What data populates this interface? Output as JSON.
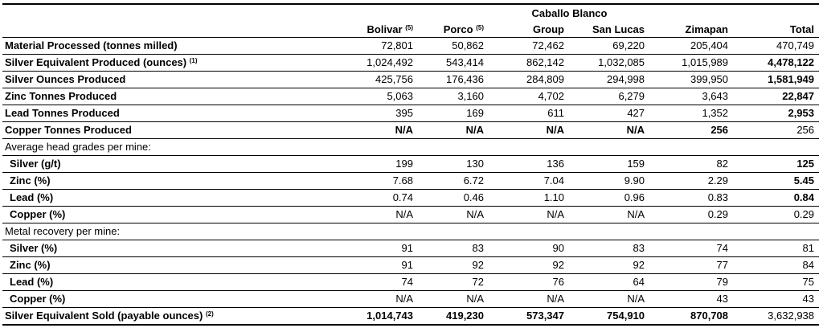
{
  "header": {
    "group_label": "Caballo Blanco",
    "columns": [
      {
        "label": "Bolivar",
        "sup": "(5)"
      },
      {
        "label": "Porco",
        "sup": "(5)"
      },
      {
        "label": "Group",
        "sup": ""
      },
      {
        "label": "San Lucas",
        "sup": ""
      },
      {
        "label": "Zimapan",
        "sup": ""
      },
      {
        "label": "Total",
        "sup": ""
      }
    ]
  },
  "rows": [
    {
      "label": "Material Processed (tonnes milled)",
      "sup": "",
      "style": "bold",
      "values": [
        "72,801",
        "50,862",
        "72,462",
        "69,220",
        "205,404",
        "470,749"
      ],
      "bold_cells": [
        false,
        false,
        false,
        false,
        false,
        false
      ]
    },
    {
      "label": "Silver Equivalent Produced (ounces)",
      "sup": "(1)",
      "style": "bold",
      "values": [
        "1,024,492",
        "543,414",
        "862,142",
        "1,032,085",
        "1,015,989",
        "4,478,122"
      ],
      "bold_cells": [
        false,
        false,
        false,
        false,
        false,
        true
      ]
    },
    {
      "label": "Silver Ounces Produced",
      "sup": "",
      "style": "bold",
      "values": [
        "425,756",
        "176,436",
        "284,809",
        "294,998",
        "399,950",
        "1,581,949"
      ],
      "bold_cells": [
        false,
        false,
        false,
        false,
        false,
        true
      ]
    },
    {
      "label": "Zinc Tonnes Produced",
      "sup": "",
      "style": "bold",
      "values": [
        "5,063",
        "3,160",
        "4,702",
        "6,279",
        "3,643",
        "22,847"
      ],
      "bold_cells": [
        false,
        false,
        false,
        false,
        false,
        true
      ]
    },
    {
      "label": "Lead Tonnes Produced",
      "sup": "",
      "style": "bold",
      "values": [
        "395",
        "169",
        "611",
        "427",
        "1,352",
        "2,953"
      ],
      "bold_cells": [
        false,
        false,
        false,
        false,
        false,
        true
      ]
    },
    {
      "label": "Copper Tonnes Produced",
      "sup": "",
      "style": "bold",
      "values": [
        "N/A",
        "N/A",
        "N/A",
        "N/A",
        "256",
        "256"
      ],
      "bold_cells": [
        true,
        true,
        true,
        true,
        true,
        false
      ]
    },
    {
      "label": "Average head grades per mine:",
      "sup": "",
      "style": "sect",
      "values": [
        "",
        "",
        "",
        "",
        "",
        ""
      ],
      "bold_cells": [
        false,
        false,
        false,
        false,
        false,
        false
      ]
    },
    {
      "label": "Silver (g/t)",
      "sup": "",
      "style": "sub",
      "values": [
        "199",
        "130",
        "136",
        "159",
        "82",
        "125"
      ],
      "bold_cells": [
        false,
        false,
        false,
        false,
        false,
        true
      ]
    },
    {
      "label": "Zinc (%)",
      "sup": "",
      "style": "sub",
      "values": [
        "7.68",
        "6.72",
        "7.04",
        "9.90",
        "2.29",
        "5.45"
      ],
      "bold_cells": [
        false,
        false,
        false,
        false,
        false,
        true
      ]
    },
    {
      "label": "Lead (%)",
      "sup": "",
      "style": "sub",
      "values": [
        "0.74",
        "0.46",
        "1.10",
        "0.96",
        "0.83",
        "0.84"
      ],
      "bold_cells": [
        false,
        false,
        false,
        false,
        false,
        true
      ]
    },
    {
      "label": "Copper (%)",
      "sup": "",
      "style": "sub",
      "values": [
        "N/A",
        "N/A",
        "N/A",
        "N/A",
        "0.29",
        "0.29"
      ],
      "bold_cells": [
        false,
        false,
        false,
        false,
        false,
        false
      ]
    },
    {
      "label": "Metal recovery per mine:",
      "sup": "",
      "style": "sect",
      "values": [
        "",
        "",
        "",
        "",
        "",
        ""
      ],
      "bold_cells": [
        false,
        false,
        false,
        false,
        false,
        false
      ]
    },
    {
      "label": "Silver (%)",
      "sup": "",
      "style": "sub",
      "values": [
        "91",
        "83",
        "90",
        "83",
        "74",
        "81"
      ],
      "bold_cells": [
        false,
        false,
        false,
        false,
        false,
        false
      ]
    },
    {
      "label": "Zinc (%)",
      "sup": "",
      "style": "sub",
      "values": [
        "91",
        "92",
        "92",
        "92",
        "77",
        "84"
      ],
      "bold_cells": [
        false,
        false,
        false,
        false,
        false,
        false
      ]
    },
    {
      "label": "Lead (%)",
      "sup": "",
      "style": "sub",
      "values": [
        "74",
        "72",
        "76",
        "64",
        "79",
        "75"
      ],
      "bold_cells": [
        false,
        false,
        false,
        false,
        false,
        false
      ]
    },
    {
      "label": "Copper (%)",
      "sup": "",
      "style": "sub",
      "values": [
        "N/A",
        "N/A",
        "N/A",
        "N/A",
        "43",
        "43"
      ],
      "bold_cells": [
        false,
        false,
        false,
        false,
        false,
        false
      ]
    },
    {
      "label": "Silver Equivalent Sold (payable ounces)",
      "sup": "(2)",
      "style": "bold last",
      "values": [
        "1,014,743",
        "419,230",
        "573,347",
        "754,910",
        "870,708",
        "3,632,938"
      ],
      "bold_cells": [
        true,
        true,
        true,
        true,
        true,
        false
      ]
    }
  ]
}
